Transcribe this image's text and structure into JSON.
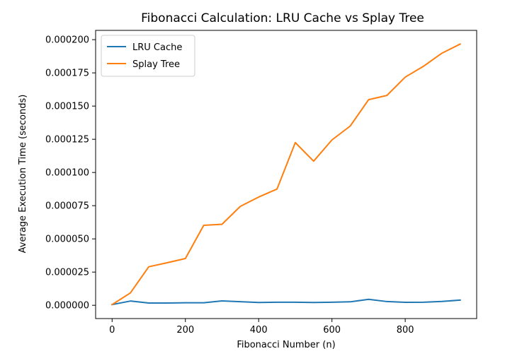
{
  "chart_data": {
    "type": "line",
    "title": "Fibonacci Calculation: LRU Cache vs Splay Tree",
    "xlabel": "Fibonacci Number (n)",
    "ylabel": "Average Execution Time (seconds)",
    "xlim": [
      -45,
      995
    ],
    "ylim": [
      -1e-05,
      0.000207
    ],
    "xticks": [
      0,
      200,
      400,
      600,
      800
    ],
    "yticks": [
      0,
      2.5e-05,
      5e-05,
      7.5e-05,
      0.0001,
      0.000125,
      0.00015,
      0.000175,
      0.0002
    ],
    "ytick_labels": [
      "0.000000",
      "0.000025",
      "0.000050",
      "0.000075",
      "0.000100",
      "0.000125",
      "0.000150",
      "0.000175",
      "0.000200"
    ],
    "grid": false,
    "legend_position": "top-left",
    "x": [
      0,
      50,
      100,
      150,
      200,
      250,
      300,
      350,
      400,
      450,
      500,
      550,
      600,
      650,
      700,
      750,
      800,
      850,
      900,
      950
    ],
    "series": [
      {
        "name": "LRU Cache",
        "color": "#1f77b4",
        "values": [
          5e-07,
          3.2e-06,
          1.7e-06,
          1.7e-06,
          1.9e-06,
          1.9e-06,
          3.3e-06,
          2.7e-06,
          2.1e-06,
          2.3e-06,
          2.3e-06,
          2.1e-06,
          2.3e-06,
          2.6e-06,
          4.5e-06,
          2.8e-06,
          2.2e-06,
          2.3e-06,
          2.9e-06,
          3.9e-06
        ]
      },
      {
        "name": "Splay Tree",
        "color": "#ff7f0e",
        "values": [
          5e-07,
          9.3e-06,
          2.9e-05,
          3.2e-05,
          3.52e-05,
          6.02e-05,
          6.1e-05,
          7.45e-05,
          8.15e-05,
          8.75e-05,
          0.0001225,
          0.0001085,
          0.0001245,
          0.000135,
          0.0001548,
          0.000158,
          0.0001718,
          0.00018,
          0.0001898,
          0.0001967
        ]
      }
    ]
  }
}
